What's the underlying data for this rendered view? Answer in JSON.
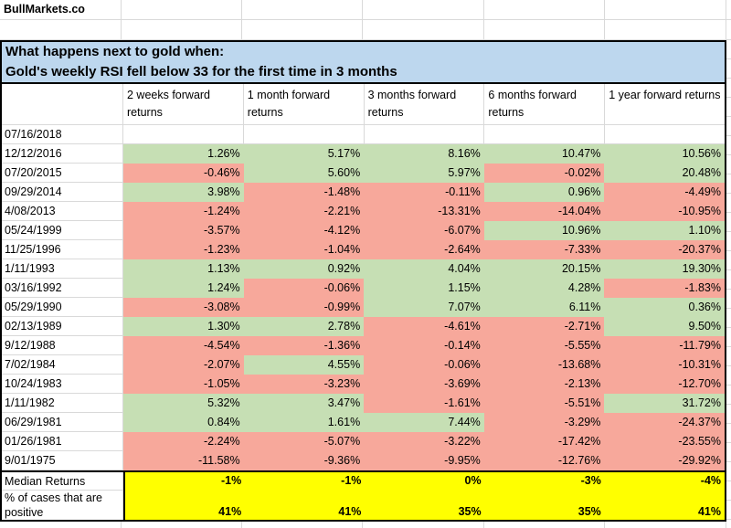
{
  "brand": "BullMarkets.co",
  "title": {
    "line1": "What happens next to gold when:",
    "line2": "Gold's weekly RSI fell below 33 for the first time in 3 months"
  },
  "table": {
    "columns": [
      "2 weeks forward returns",
      "1 month forward returns",
      "3 months forward returns",
      "6 months forward returns",
      "1 year forward returns"
    ],
    "rows": [
      {
        "date": "07/16/2018",
        "values": [
          "",
          "",
          "",
          "",
          ""
        ]
      },
      {
        "date": "12/12/2016",
        "values": [
          "1.26%",
          "5.17%",
          "8.16%",
          "10.47%",
          "10.56%"
        ]
      },
      {
        "date": "07/20/2015",
        "values": [
          "-0.46%",
          "5.60%",
          "5.97%",
          "-0.02%",
          "20.48%"
        ]
      },
      {
        "date": "09/29/2014",
        "values": [
          "3.98%",
          "-1.48%",
          "-0.11%",
          "0.96%",
          "-4.49%"
        ]
      },
      {
        "date": "4/08/2013",
        "values": [
          "-1.24%",
          "-2.21%",
          "-13.31%",
          "-14.04%",
          "-10.95%"
        ]
      },
      {
        "date": "05/24/1999",
        "values": [
          "-3.57%",
          "-4.12%",
          "-6.07%",
          "10.96%",
          "1.10%"
        ]
      },
      {
        "date": "11/25/1996",
        "values": [
          "-1.23%",
          "-1.04%",
          "-2.64%",
          "-7.33%",
          "-20.37%"
        ]
      },
      {
        "date": "1/11/1993",
        "values": [
          "1.13%",
          "0.92%",
          "4.04%",
          "20.15%",
          "19.30%"
        ]
      },
      {
        "date": "03/16/1992",
        "values": [
          "1.24%",
          "-0.06%",
          "1.15%",
          "4.28%",
          "-1.83%"
        ]
      },
      {
        "date": "05/29/1990",
        "values": [
          "-3.08%",
          "-0.99%",
          "7.07%",
          "6.11%",
          "0.36%"
        ]
      },
      {
        "date": "02/13/1989",
        "values": [
          "1.30%",
          "2.78%",
          "-4.61%",
          "-2.71%",
          "9.50%"
        ]
      },
      {
        "date": "9/12/1988",
        "values": [
          "-4.54%",
          "-1.36%",
          "-0.14%",
          "-5.55%",
          "-11.79%"
        ]
      },
      {
        "date": "7/02/1984",
        "values": [
          "-2.07%",
          "4.55%",
          "-0.06%",
          "-13.68%",
          "-10.31%"
        ]
      },
      {
        "date": "10/24/1983",
        "values": [
          "-1.05%",
          "-3.23%",
          "-3.69%",
          "-2.13%",
          "-12.70%"
        ]
      },
      {
        "date": "1/11/1982",
        "values": [
          "5.32%",
          "3.47%",
          "-1.61%",
          "-5.51%",
          "31.72%"
        ]
      },
      {
        "date": "06/29/1981",
        "values": [
          "0.84%",
          "1.61%",
          "7.44%",
          "-3.29%",
          "-24.37%"
        ]
      },
      {
        "date": "01/26/1981",
        "values": [
          "-2.24%",
          "-5.07%",
          "-3.22%",
          "-17.42%",
          "-23.55%"
        ]
      },
      {
        "date": "9/01/1975",
        "values": [
          "-11.58%",
          "-9.36%",
          "-9.95%",
          "-12.76%",
          "-29.92%"
        ]
      }
    ],
    "summary": {
      "median_label": "Median Returns",
      "median_values": [
        "-1%",
        "-1%",
        "0%",
        "-3%",
        "-4%"
      ],
      "positive_label": "% of cases that are positive",
      "positive_values": [
        "41%",
        "41%",
        "35%",
        "35%",
        "41%"
      ]
    }
  },
  "colors": {
    "positive_fill": "#c6dfb4",
    "negative_fill": "#f7a89b",
    "summary_fill": "#ffff00",
    "title_fill": "#bdd7ee",
    "gridline": "#d9d9d9"
  }
}
